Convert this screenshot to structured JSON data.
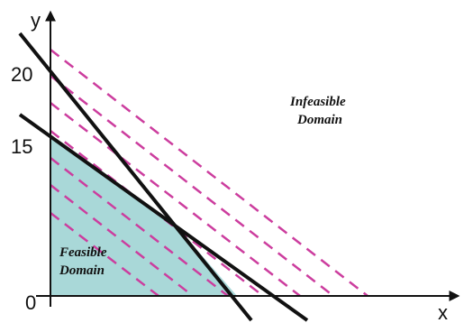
{
  "diagram": {
    "x_axis_label": "x",
    "y_axis_label": "y",
    "tick_labels": {
      "origin": "0",
      "y15": "15",
      "y20": "20"
    },
    "region_labels": {
      "feasible": [
        "Feasible",
        "Domain"
      ],
      "infeasible": [
        "Infeasible",
        "Domain"
      ]
    },
    "colors": {
      "feasible_fill": "#a9d8d8",
      "constraint_lines": "#111111",
      "objective_lines": "#cc3d9e",
      "axes": "#111111"
    }
  }
}
